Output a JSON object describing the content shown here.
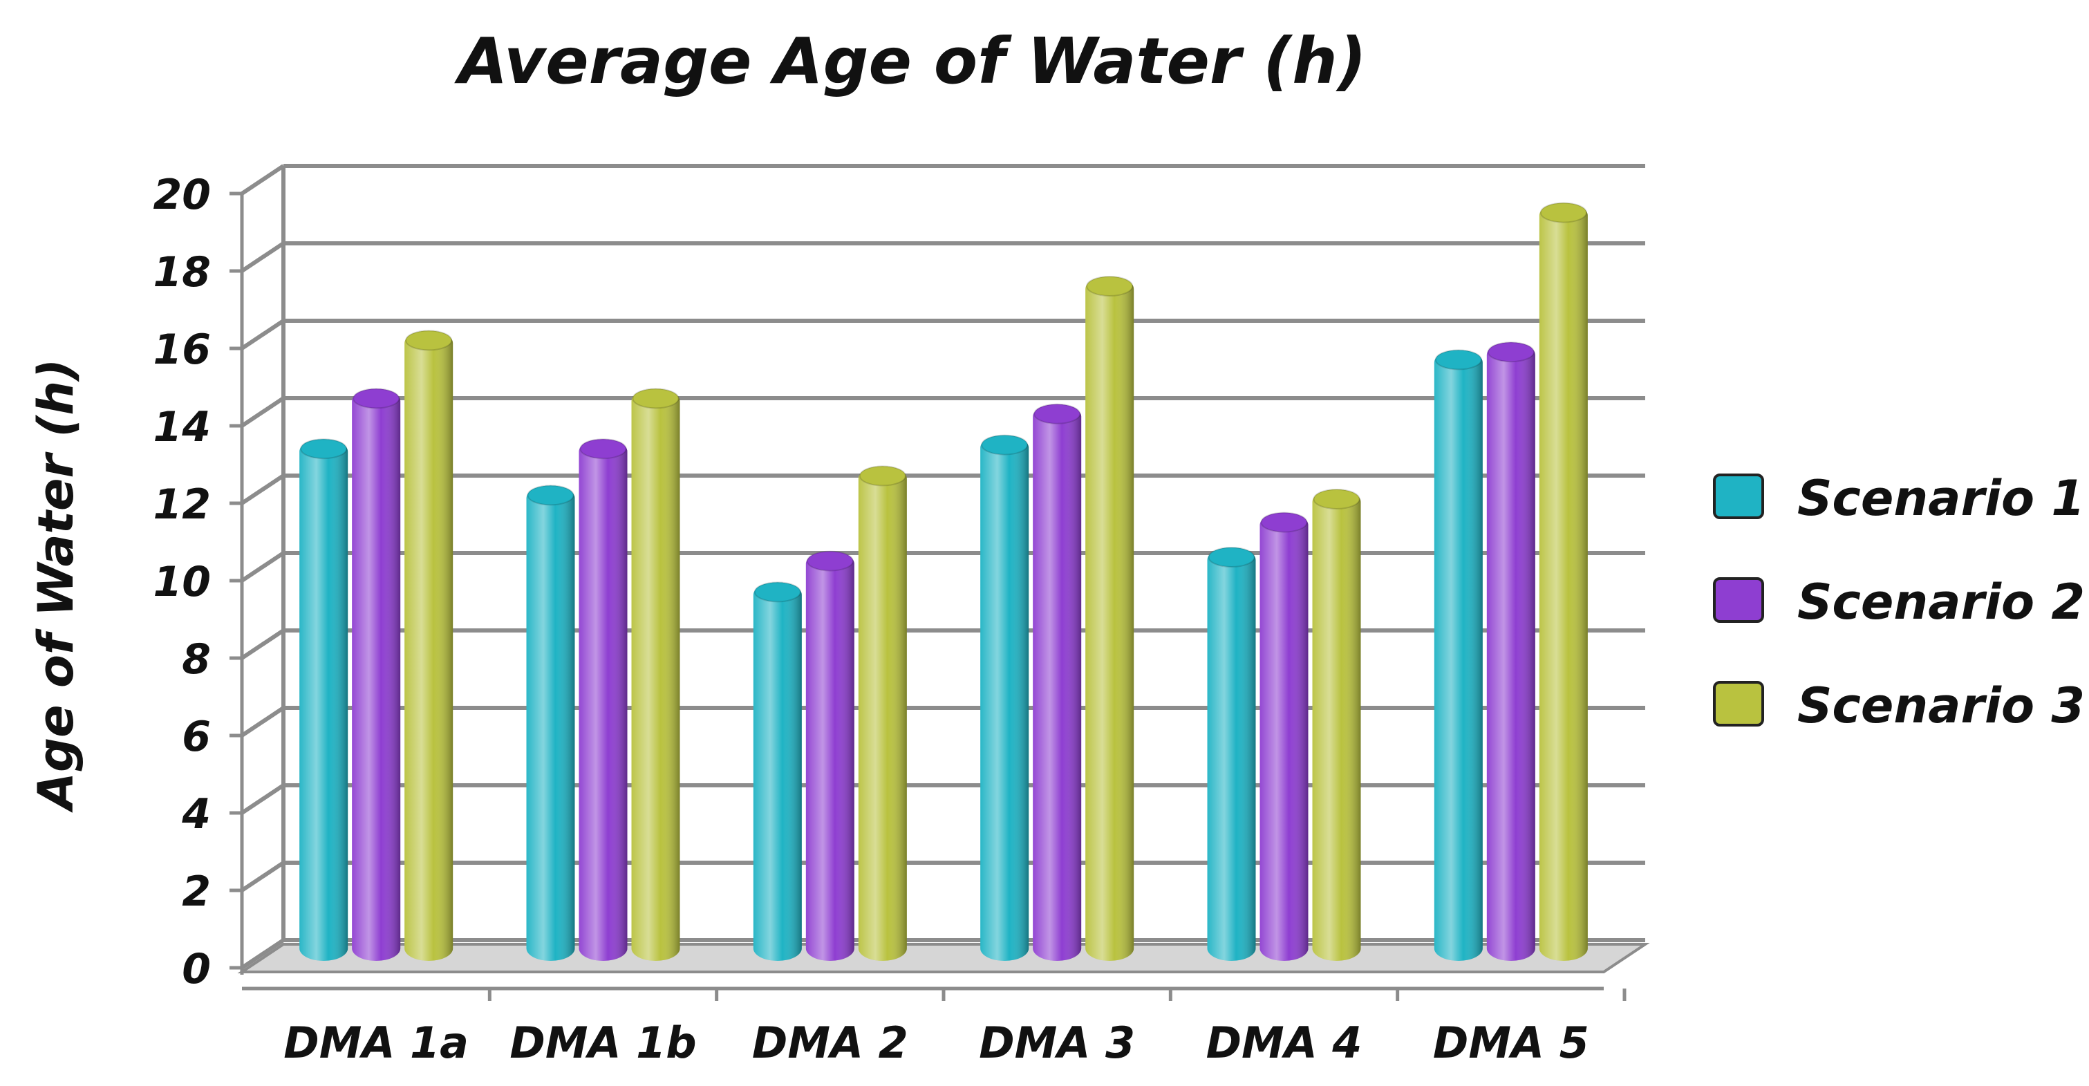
{
  "chart_data": {
    "type": "bar",
    "title": "Average Age of Water (h)",
    "xlabel": "",
    "ylabel": "Age of Water (h)",
    "ylim": [
      0,
      20
    ],
    "yticks": [
      "0",
      "2",
      "4",
      "6",
      "8",
      "10",
      "12",
      "14",
      "16",
      "18",
      "20"
    ],
    "categories": [
      "DMA 1a",
      "DMA 1b",
      "DMA 2",
      "DMA 3",
      "DMA 4",
      "DMA 5"
    ],
    "series": [
      {
        "name": "Scenario 1",
        "color": "#1fb3c4",
        "values": [
          13.3,
          12.1,
          9.6,
          13.4,
          10.5,
          15.6
        ]
      },
      {
        "name": "Scenario 2",
        "color": "#8e3ed1",
        "values": [
          14.6,
          13.3,
          10.4,
          14.2,
          11.4,
          15.8
        ]
      },
      {
        "name": "Scenario 3",
        "color": "#b9c23f",
        "values": [
          16.1,
          14.6,
          12.6,
          17.5,
          12.0,
          19.4
        ]
      }
    ],
    "legend_position": "right",
    "grid": true
  }
}
